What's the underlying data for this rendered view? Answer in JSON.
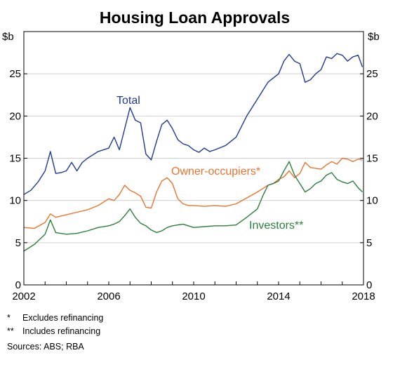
{
  "chart_data": {
    "type": "line",
    "title": "Housing Loan Approvals",
    "ylabel_left": "$b",
    "ylabel_right": "$b",
    "xlim": [
      2002,
      2018
    ],
    "ylim": [
      0,
      30
    ],
    "x_ticks": [
      2002,
      2006,
      2010,
      2014,
      2018
    ],
    "y_ticks": [
      0,
      5,
      10,
      15,
      20,
      25
    ],
    "grid": true,
    "series": [
      {
        "name": "Total",
        "color": "#1f3a93",
        "x": [
          2002.0,
          2002.33,
          2002.67,
          2003.0,
          2003.25,
          2003.5,
          2003.75,
          2004.0,
          2004.25,
          2004.5,
          2004.75,
          2005.0,
          2005.5,
          2006.0,
          2006.25,
          2006.5,
          2006.75,
          2007.0,
          2007.25,
          2007.5,
          2007.75,
          2008.0,
          2008.25,
          2008.5,
          2008.75,
          2009.0,
          2009.25,
          2009.5,
          2009.75,
          2010.0,
          2010.25,
          2010.5,
          2010.75,
          2011.0,
          2011.5,
          2012.0,
          2012.5,
          2013.0,
          2013.25,
          2013.5,
          2013.75,
          2014.0,
          2014.25,
          2014.5,
          2014.75,
          2015.0,
          2015.25,
          2015.5,
          2015.75,
          2016.0,
          2016.25,
          2016.5,
          2016.75,
          2017.0,
          2017.25,
          2017.5,
          2017.75,
          2017.95
        ],
        "y": [
          10.7,
          11.2,
          12.2,
          13.5,
          15.8,
          13.2,
          13.3,
          13.5,
          14.5,
          13.5,
          14.5,
          15.0,
          15.8,
          16.2,
          17.5,
          16.0,
          18.5,
          21.0,
          19.5,
          19.2,
          15.5,
          14.8,
          17.0,
          19.0,
          19.5,
          18.5,
          17.2,
          16.7,
          16.5,
          16.0,
          15.7,
          16.2,
          15.8,
          16.0,
          16.5,
          17.5,
          20.0,
          22.0,
          23.0,
          24.0,
          24.5,
          25.0,
          26.5,
          27.3,
          26.5,
          26.2,
          24.0,
          24.3,
          25.0,
          25.5,
          27.0,
          26.8,
          27.4,
          27.2,
          26.5,
          27.0,
          27.2,
          25.8
        ]
      },
      {
        "name": "Owner-occupiers*",
        "color": "#e8742f",
        "x": [
          2002.0,
          2002.5,
          2003.0,
          2003.25,
          2003.5,
          2004.0,
          2004.5,
          2005.0,
          2005.5,
          2006.0,
          2006.25,
          2006.5,
          2006.75,
          2007.0,
          2007.25,
          2007.5,
          2007.75,
          2008.0,
          2008.25,
          2008.5,
          2008.75,
          2009.0,
          2009.25,
          2009.5,
          2009.75,
          2010.0,
          2010.5,
          2011.0,
          2011.5,
          2012.0,
          2012.5,
          2013.0,
          2013.25,
          2013.5,
          2013.75,
          2014.0,
          2014.25,
          2014.5,
          2014.75,
          2015.0,
          2015.25,
          2015.5,
          2015.75,
          2016.0,
          2016.25,
          2016.5,
          2016.75,
          2017.0,
          2017.25,
          2017.5,
          2017.75,
          2017.95
        ],
        "y": [
          6.8,
          6.7,
          7.4,
          8.4,
          8.0,
          8.3,
          8.6,
          8.9,
          9.4,
          10.2,
          10.0,
          10.7,
          11.8,
          11.2,
          10.9,
          10.5,
          9.2,
          9.1,
          11.0,
          12.3,
          12.7,
          12.0,
          10.2,
          9.6,
          9.4,
          9.4,
          9.3,
          9.4,
          9.3,
          9.6,
          10.3,
          11.0,
          11.4,
          11.8,
          12.0,
          12.5,
          12.8,
          13.5,
          12.7,
          13.2,
          14.5,
          13.9,
          13.8,
          13.7,
          14.2,
          14.6,
          14.3,
          15.0,
          14.9,
          14.6,
          14.9,
          14.8
        ]
      },
      {
        "name": "Investors**",
        "color": "#2a7f3b",
        "x": [
          2002.0,
          2002.5,
          2003.0,
          2003.25,
          2003.5,
          2004.0,
          2004.5,
          2005.0,
          2005.5,
          2006.0,
          2006.25,
          2006.5,
          2006.75,
          2007.0,
          2007.25,
          2007.5,
          2007.75,
          2008.0,
          2008.25,
          2008.5,
          2008.75,
          2009.0,
          2009.25,
          2009.5,
          2009.75,
          2010.0,
          2010.5,
          2011.0,
          2011.5,
          2012.0,
          2012.5,
          2013.0,
          2013.25,
          2013.5,
          2013.75,
          2014.0,
          2014.25,
          2014.5,
          2014.75,
          2015.0,
          2015.25,
          2015.5,
          2015.75,
          2016.0,
          2016.25,
          2016.5,
          2016.75,
          2017.0,
          2017.25,
          2017.5,
          2017.75,
          2017.95
        ],
        "y": [
          4.0,
          4.8,
          6.0,
          7.7,
          6.2,
          6.0,
          6.1,
          6.4,
          6.8,
          7.0,
          7.2,
          7.5,
          8.2,
          9.0,
          8.0,
          7.3,
          7.0,
          6.5,
          6.2,
          6.4,
          6.8,
          7.0,
          7.1,
          7.2,
          7.0,
          6.8,
          6.9,
          7.0,
          7.0,
          7.1,
          8.0,
          9.0,
          10.5,
          11.8,
          12.0,
          12.3,
          13.5,
          14.6,
          13.0,
          12.0,
          11.0,
          11.4,
          12.0,
          12.3,
          13.0,
          13.3,
          12.5,
          12.2,
          12.0,
          12.3,
          11.5,
          11.0
        ]
      }
    ],
    "series_labels": [
      "Total",
      "Owner-occupiers*",
      "Investors**"
    ]
  },
  "notes": [
    {
      "mark": "*",
      "text": "Excludes refinancing"
    },
    {
      "mark": "**",
      "text": "Includes refinancing"
    }
  ],
  "sources": "Sources: ABS; RBA"
}
